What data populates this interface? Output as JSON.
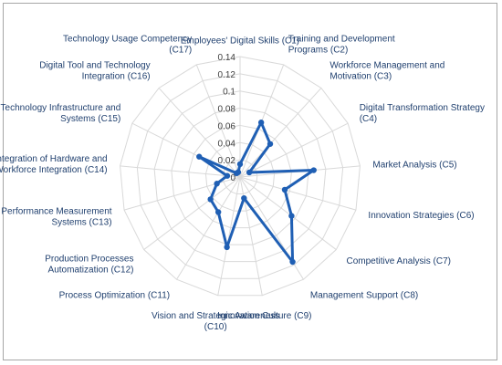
{
  "chart_data": {
    "type": "radar",
    "title": "",
    "categories": [
      [
        "Employees' Digital Skills (C1)"
      ],
      [
        "Training and Development",
        "Programs (C2)"
      ],
      [
        "Workforce Management and",
        "Motivation (C3)"
      ],
      [
        "Digital Transformation Strategy",
        "(C4)"
      ],
      [
        "Market Analysis (C5)"
      ],
      [
        "Innovation Strategies (C6)"
      ],
      [
        "Competitive Analysis (C7)"
      ],
      [
        "Management Support (C8)"
      ],
      [
        "Innovation Culture (C9)"
      ],
      [
        "Vision and Strategic Awareness",
        "(C10)"
      ],
      [
        "Process Optimization (C11)"
      ],
      [
        "Production Processes",
        "Automatization (C12)"
      ],
      [
        "Performance Measurement",
        "Systems (C13)"
      ],
      [
        "Integration of Hardware and",
        "Workforce Integration (C14)"
      ],
      [
        "Technology Infrastructure and",
        "Systems (C15)"
      ],
      [
        "Digital Tool and Technology",
        "Integration (C16)"
      ],
      [
        "Technology Usage Competency",
        "(C17)"
      ]
    ],
    "series": [
      {
        "values": [
          0.015,
          0.068,
          0.052,
          0.012,
          0.086,
          0.054,
          0.075,
          0.116,
          0.025,
          0.083,
          0.048,
          0.043,
          0.028,
          0.015,
          0.053,
          0.006,
          0.006
        ]
      }
    ],
    "r_ticks": [
      "0",
      "0.02",
      "0.04",
      "0.06",
      "0.08",
      "0.1",
      "0.12",
      "0.14"
    ],
    "rlim": [
      0,
      0.14
    ],
    "grid": true,
    "legend": "none",
    "colors": {
      "series": "#1f5fb4",
      "grid": "#d9d9d9",
      "label": "#1f3f6e",
      "tick": "#404040"
    }
  }
}
